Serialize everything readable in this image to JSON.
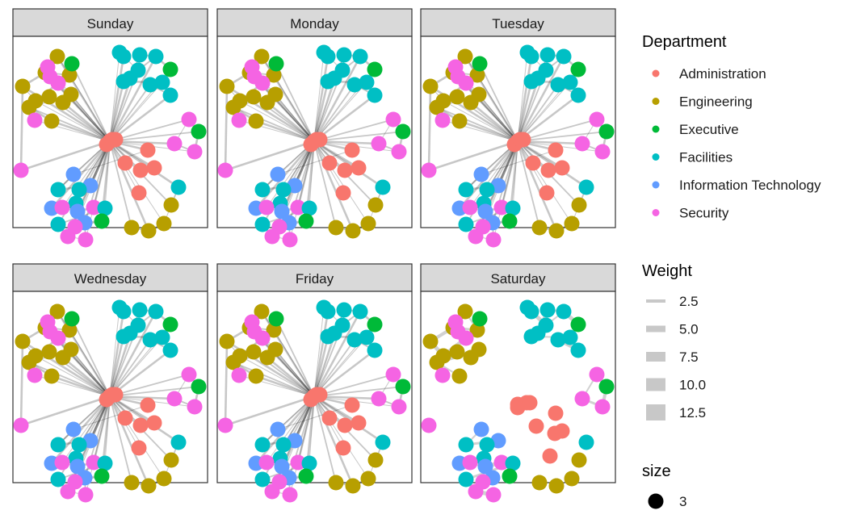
{
  "facets": [
    {
      "label": "Sunday"
    },
    {
      "label": "Monday"
    },
    {
      "label": "Tuesday"
    },
    {
      "label": "Wednesday"
    },
    {
      "label": "Friday"
    },
    {
      "label": "Saturday"
    }
  ],
  "legend": {
    "department": {
      "title": "Department",
      "items": [
        {
          "label": "Administration",
          "color": "#F8766D"
        },
        {
          "label": "Engineering",
          "color": "#B79F00"
        },
        {
          "label": "Executive",
          "color": "#00BA38"
        },
        {
          "label": "Facilities",
          "color": "#00BFC4"
        },
        {
          "label": "Information Technology",
          "color": "#619CFF"
        },
        {
          "label": "Security",
          "color": "#F564E3"
        }
      ]
    },
    "weight": {
      "title": "Weight",
      "items": [
        {
          "label": "2.5",
          "value": 2.5
        },
        {
          "label": "5.0",
          "value": 5.0
        },
        {
          "label": "7.5",
          "value": 7.5
        },
        {
          "label": "10.0",
          "value": 10.0
        },
        {
          "label": "12.5",
          "value": 12.5
        }
      ]
    },
    "size": {
      "title": "size",
      "items": [
        {
          "label": "3"
        }
      ]
    }
  },
  "colors": {
    "strip_bg": "#D9D9D9",
    "panel_border": "#333333",
    "edge": "#000000",
    "edge_legend": "#C8C8C8"
  }
}
